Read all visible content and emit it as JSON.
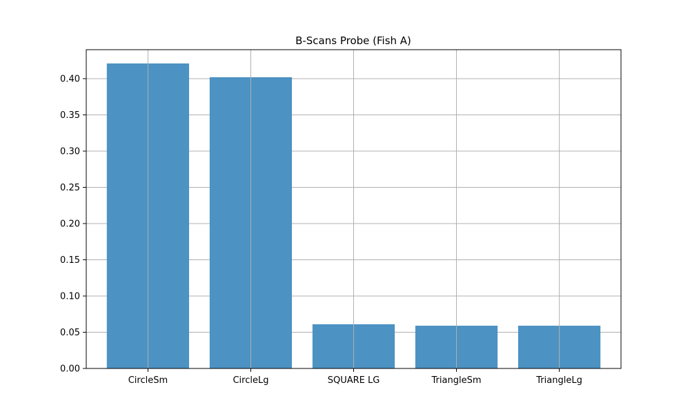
{
  "chart_data": {
    "type": "bar",
    "title": "B-Scans Probe (Fish A)",
    "xlabel": "",
    "ylabel": "",
    "categories": [
      "CircleSm",
      "CircleLg",
      "SQUARE LG",
      "TriangleSm",
      "TriangleLg"
    ],
    "values": [
      0.421,
      0.402,
      0.061,
      0.059,
      0.059
    ],
    "ylim": [
      0,
      0.44
    ],
    "yticks": [
      0.0,
      0.05,
      0.1,
      0.15,
      0.2,
      0.25,
      0.3,
      0.35,
      0.4
    ],
    "ytick_labels": [
      "0.00",
      "0.05",
      "0.10",
      "0.15",
      "0.20",
      "0.25",
      "0.30",
      "0.35",
      "0.40"
    ],
    "grid": true,
    "legend": "none",
    "colors": {
      "bar": "#4c92c3",
      "grid": "#b0b0b0",
      "axis": "#000000"
    }
  }
}
